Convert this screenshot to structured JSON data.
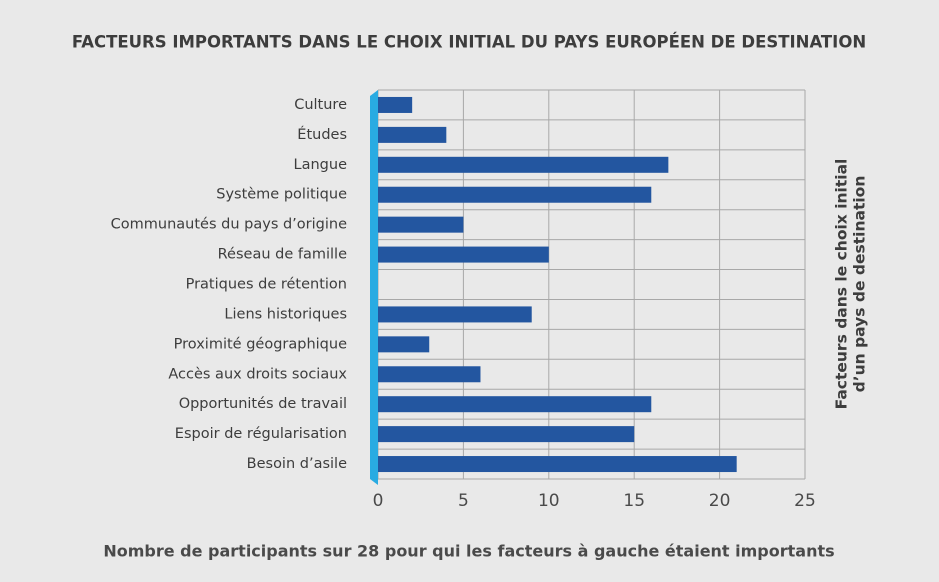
{
  "chart_data": {
    "type": "barh",
    "title": "FACTEURS IMPORTANTS DANS LE CHOIX INITIAL DU PAYS EUROPÉEN DE DESTINATION",
    "x_label": "Nombre de participants sur 28 pour qui les facteurs à gauche étaient importants",
    "y2_label_lines": [
      "Facteurs dans le choix initial",
      "d’un pays de destination"
    ],
    "categories": [
      "Culture",
      "Études",
      "Langue",
      "Système politique",
      "Communautés du pays d’origine",
      "Réseau de famille",
      "Pratiques de rétention",
      "Liens historiques",
      "Proximité géographique",
      "Accès aux droits sociaux",
      "Opportunités de travail",
      "Espoir de régularisation",
      "Besoin d’asile"
    ],
    "values": [
      2,
      4,
      17,
      16,
      5,
      10,
      0,
      9,
      3,
      6,
      16,
      15,
      21
    ],
    "color": "#2356a0",
    "xlim": [
      0,
      25
    ],
    "xticks": [
      0,
      5,
      10,
      15,
      20,
      25
    ],
    "grid": true
  }
}
